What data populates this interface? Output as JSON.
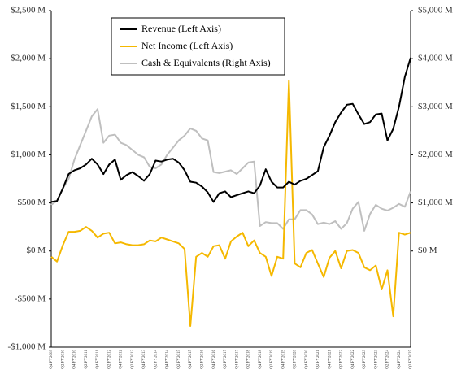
{
  "chart_data": {
    "type": "line",
    "categories": [
      "Q4 FY2009",
      null,
      "Q2 FY2010",
      null,
      "Q4 FY2010",
      null,
      "Q2 FY2011",
      null,
      "Q4 FY2011",
      null,
      "Q2 FY2012",
      null,
      "Q4 FY2012",
      null,
      "Q2 FY2013",
      null,
      "Q4 FY2013",
      null,
      "Q2 FY2014",
      null,
      "Q4 FY2014",
      null,
      "Q2 FY2015",
      null,
      "Q4 FY2015",
      null,
      "Q2 FY2016",
      null,
      "Q4 FY2016",
      null,
      "Q2 FY2017",
      null,
      "Q4 FY2017",
      null,
      "Q2 FY2018",
      null,
      "Q4 FY2018",
      null,
      "Q2 FY2019",
      null,
      "Q4 FY2019",
      null,
      "Q2 FY2020",
      null,
      "Q4 FY2020",
      null,
      "Q2 FY2021",
      null,
      "Q4 FY2021",
      null,
      "Q2 FY2022",
      null,
      "Q4 FY2022",
      null,
      "Q2 FY2023",
      null,
      "Q4 FY2023",
      null,
      "Q2 FY2024",
      null,
      "Q4 FY2024",
      null,
      "Q2 FY2025"
    ],
    "series": [
      {
        "name": "Revenue (Left Axis)",
        "color": "#000000",
        "values": [
          510,
          520,
          650,
          800,
          840,
          860,
          900,
          960,
          900,
          800,
          900,
          950,
          740,
          790,
          820,
          780,
          730,
          800,
          940,
          930,
          950,
          960,
          920,
          840,
          720,
          710,
          670,
          610,
          510,
          600,
          620,
          560,
          580,
          600,
          620,
          600,
          680,
          850,
          720,
          660,
          660,
          720,
          690,
          730,
          750,
          790,
          830,
          1080,
          1200,
          1340,
          1440,
          1520,
          1530,
          1420,
          1320,
          1340,
          1420,
          1430,
          1150,
          1270,
          1500,
          1810,
          2010
        ]
      },
      {
        "name": "Net Income (Left Axis)",
        "color": "#f5b800",
        "values": [
          -60,
          -110,
          60,
          200,
          200,
          210,
          250,
          210,
          140,
          180,
          190,
          80,
          90,
          70,
          60,
          60,
          70,
          110,
          100,
          140,
          120,
          100,
          80,
          20,
          -780,
          -60,
          -20,
          -60,
          50,
          60,
          -80,
          100,
          150,
          190,
          50,
          110,
          -20,
          -60,
          -260,
          -60,
          -80,
          1770,
          -130,
          -170,
          -20,
          10,
          -130,
          -270,
          -70,
          0,
          -180,
          0,
          10,
          -20,
          -170,
          -200,
          -150,
          -400,
          -200,
          -680,
          190,
          170,
          190
        ]
      },
      {
        "name": "Cash & Equivalents (Right Axis)",
        "color": "#bfbfbf",
        "axis": "y2",
        "values": [
          960,
          1040,
          1300,
          1500,
          1900,
          2200,
          2500,
          2800,
          2950,
          2250,
          2400,
          2420,
          2250,
          2200,
          2100,
          2000,
          1950,
          1750,
          1720,
          1800,
          2000,
          2150,
          2300,
          2400,
          2550,
          2500,
          2340,
          2300,
          1640,
          1620,
          1650,
          1680,
          1600,
          1720,
          1840,
          1860,
          520,
          600,
          580,
          580,
          460,
          660,
          660,
          850,
          850,
          760,
          560,
          590,
          560,
          620,
          460,
          580,
          880,
          1020,
          420,
          770,
          960,
          880,
          840,
          900,
          980,
          920,
          1240
        ]
      }
    ],
    "ylim": [
      -1000,
      2500
    ],
    "yticks": [
      {
        "value": -1000,
        "label": "-$1,000 M"
      },
      {
        "value": -500,
        "label": "-$500 M"
      },
      {
        "value": 0,
        "label": "$0 M"
      },
      {
        "value": 500,
        "label": "$500 M"
      },
      {
        "value": 1000,
        "label": "$1,000 M"
      },
      {
        "value": 1500,
        "label": "$1,500 M"
      },
      {
        "value": 2000,
        "label": "$2,000 M"
      },
      {
        "value": 2500,
        "label": "$2,500 M"
      }
    ],
    "y2lim": [
      -2000,
      5000
    ],
    "y2ticks": [
      {
        "value": 0,
        "label": "$0 M"
      },
      {
        "value": 1000,
        "label": "$1,000 M"
      },
      {
        "value": 2000,
        "label": "$2,000 M"
      },
      {
        "value": 3000,
        "label": "$3,000 M"
      },
      {
        "value": 4000,
        "label": "$4,000 M"
      },
      {
        "value": 5000,
        "label": "$5,000 M"
      }
    ],
    "legend": "upper left"
  }
}
